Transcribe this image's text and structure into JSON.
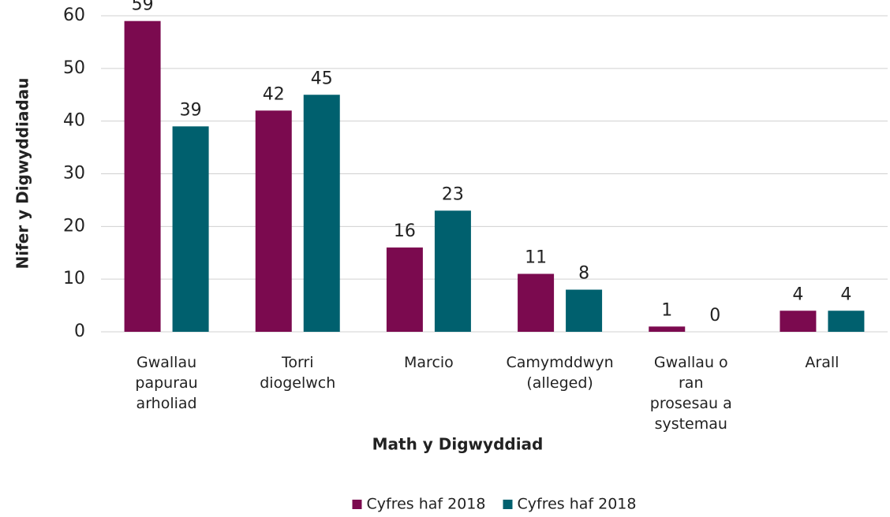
{
  "chart_data": {
    "type": "bar",
    "x_label": "Math y Digwyddiad",
    "y_label": "Nifer y Digwyddiadau",
    "categories": [
      "Gwallau papurau arholiad",
      "Torri diogelwch",
      "Marcio",
      "Camymddwyn (alleged)",
      "Gwallau o ran prosesau a systemau",
      "Arall"
    ],
    "series": [
      {
        "name": "Cyfres haf 2018",
        "color": "#7b0a4f",
        "values": [
          59,
          42,
          16,
          11,
          1,
          4
        ]
      },
      {
        "name": "Cyfres haf 2018",
        "color": "#00606e",
        "values": [
          39,
          45,
          23,
          8,
          0,
          4
        ]
      }
    ],
    "ylim": [
      0,
      60
    ],
    "yticks": [
      0,
      10,
      20,
      30,
      40,
      50,
      60
    ],
    "grid": true,
    "legend": "bottom"
  }
}
